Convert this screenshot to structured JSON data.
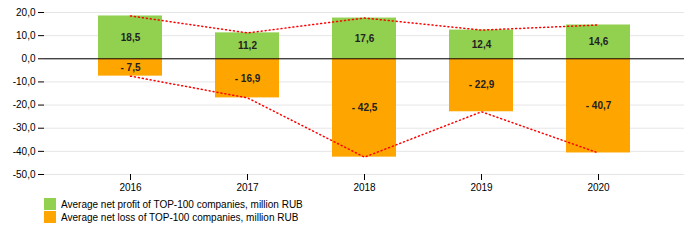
{
  "chart_data": {
    "type": "bar",
    "categories": [
      "2016",
      "2017",
      "2018",
      "2019",
      "2020"
    ],
    "series": [
      {
        "name": "Average net profit of TOP-100 companies, million RUB",
        "type": "bar",
        "color": "#92d050",
        "values": [
          18.5,
          11.2,
          17.6,
          12.4,
          14.6
        ],
        "value_labels": [
          "18,5",
          "11,2",
          "17,6",
          "12,4",
          "14,6"
        ]
      },
      {
        "name": "Average net loss of TOP-100 companies, million RUB",
        "type": "bar",
        "color": "#ffa500",
        "values": [
          -7.5,
          -16.9,
          -42.5,
          -22.9,
          -40.7
        ],
        "value_labels": [
          "- 7,5",
          "- 16,9",
          "- 42,5",
          "- 22,9",
          "- 40,7"
        ]
      },
      {
        "type": "line",
        "color": "red",
        "line_style": "dotted",
        "values": [
          18.5,
          11.2,
          17.6,
          12.4,
          14.6
        ]
      },
      {
        "type": "line",
        "color": "red",
        "line_style": "dotted",
        "values": [
          -7.5,
          -16.9,
          -42.5,
          -22.9,
          -40.7
        ]
      }
    ],
    "ylim": [
      -50,
      20
    ],
    "yticks": [
      {
        "value": -50,
        "label": "-50,0"
      },
      {
        "value": -40,
        "label": "-40,0"
      },
      {
        "value": -30,
        "label": "-30,0"
      },
      {
        "value": -20,
        "label": "-20,0"
      },
      {
        "value": -10,
        "label": "-10,0"
      },
      {
        "value": 0,
        "label": "0,0"
      },
      {
        "value": 10,
        "label": "10,0"
      },
      {
        "value": 20,
        "label": "20,0"
      }
    ],
    "grid": true,
    "legend": "lower left",
    "data_labels": true
  }
}
